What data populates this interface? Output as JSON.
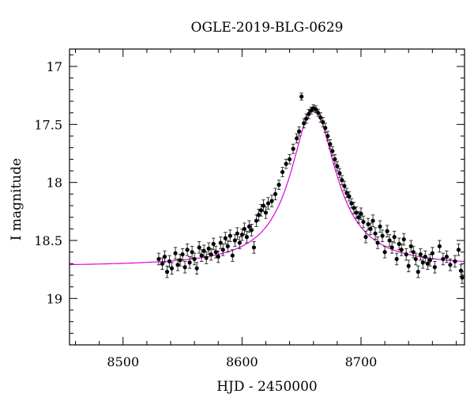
{
  "chart_data": {
    "type": "scatter",
    "title": "OGLE-2019-BLG-0629",
    "xlabel": "HJD - 2450000",
    "ylabel": "I magnitude",
    "xlim": [
      8455,
      8787
    ],
    "ylim": [
      19.4,
      16.85
    ],
    "y_inverted": true,
    "grid": false,
    "x_ticks": [
      8500,
      8600,
      8700
    ],
    "x_tick_labels": [
      "8500",
      "8600",
      "8700"
    ],
    "y_ticks": [
      17,
      17.5,
      18,
      18.5,
      19
    ],
    "y_tick_labels": [
      "17",
      "17.5",
      "18",
      "18.5",
      "19"
    ],
    "colors": {
      "points": "#000000",
      "model": "#e000e0"
    },
    "series": [
      {
        "kind": "points",
        "points": [
          [
            8530,
            18.66,
            0.05
          ],
          [
            8533,
            18.7,
            0.05
          ],
          [
            8535,
            18.64,
            0.05
          ],
          [
            8537,
            18.77,
            0.05
          ],
          [
            8539,
            18.68,
            0.05
          ],
          [
            8541,
            18.74,
            0.05
          ],
          [
            8544,
            18.61,
            0.05
          ],
          [
            8546,
            18.71,
            0.05
          ],
          [
            8548,
            18.67,
            0.05
          ],
          [
            8550,
            18.62,
            0.05
          ],
          [
            8552,
            18.73,
            0.05
          ],
          [
            8554,
            18.58,
            0.05
          ],
          [
            8556,
            18.69,
            0.05
          ],
          [
            8558,
            18.6,
            0.05
          ],
          [
            8560,
            18.66,
            0.05
          ],
          [
            8562,
            18.74,
            0.05
          ],
          [
            8564,
            18.56,
            0.05
          ],
          [
            8566,
            18.63,
            0.05
          ],
          [
            8568,
            18.59,
            0.05
          ],
          [
            8570,
            18.65,
            0.05
          ],
          [
            8572,
            18.57,
            0.05
          ],
          [
            8574,
            18.62,
            0.05
          ],
          [
            8576,
            18.53,
            0.05
          ],
          [
            8578,
            18.6,
            0.05
          ],
          [
            8580,
            18.64,
            0.05
          ],
          [
            8582,
            18.52,
            0.05
          ],
          [
            8584,
            18.58,
            0.05
          ],
          [
            8586,
            18.48,
            0.05
          ],
          [
            8588,
            18.55,
            0.05
          ],
          [
            8590,
            18.46,
            0.05
          ],
          [
            8592,
            18.63,
            0.05
          ],
          [
            8594,
            18.5,
            0.05
          ],
          [
            8596,
            18.44,
            0.05
          ],
          [
            8598,
            18.52,
            0.05
          ],
          [
            8600,
            18.45,
            0.05
          ],
          [
            8602,
            18.4,
            0.05
          ],
          [
            8604,
            18.47,
            0.05
          ],
          [
            8606,
            18.38,
            0.05
          ],
          [
            8608,
            18.41,
            0.05
          ],
          [
            8610,
            18.56,
            0.05
          ],
          [
            8612,
            18.33,
            0.05
          ],
          [
            8614,
            18.28,
            0.05
          ],
          [
            8616,
            18.24,
            0.05
          ],
          [
            8618,
            18.2,
            0.05
          ],
          [
            8620,
            18.26,
            0.05
          ],
          [
            8622,
            18.18,
            0.05
          ],
          [
            8625,
            18.16,
            0.05
          ],
          [
            8628,
            18.1,
            0.05
          ],
          [
            8631,
            18.02,
            0.04
          ],
          [
            8634,
            17.91,
            0.04
          ],
          [
            8637,
            17.84,
            0.04
          ],
          [
            8640,
            17.8,
            0.04
          ],
          [
            8643,
            17.71,
            0.04
          ],
          [
            8646,
            17.62,
            0.04
          ],
          [
            8648,
            17.56,
            0.04
          ],
          [
            8650,
            17.26,
            0.03
          ],
          [
            8652,
            17.49,
            0.04
          ],
          [
            8654,
            17.45,
            0.04
          ],
          [
            8656,
            17.41,
            0.04
          ],
          [
            8658,
            17.38,
            0.03
          ],
          [
            8660,
            17.36,
            0.03
          ],
          [
            8662,
            17.37,
            0.03
          ],
          [
            8664,
            17.4,
            0.03
          ],
          [
            8666,
            17.44,
            0.04
          ],
          [
            8668,
            17.48,
            0.04
          ],
          [
            8670,
            17.53,
            0.04
          ],
          [
            8672,
            17.6,
            0.04
          ],
          [
            8674,
            17.67,
            0.04
          ],
          [
            8676,
            17.73,
            0.04
          ],
          [
            8678,
            17.8,
            0.04
          ],
          [
            8680,
            17.86,
            0.04
          ],
          [
            8682,
            17.92,
            0.04
          ],
          [
            8684,
            17.98,
            0.04
          ],
          [
            8686,
            18.03,
            0.04
          ],
          [
            8688,
            18.09,
            0.04
          ],
          [
            8690,
            18.12,
            0.04
          ],
          [
            8692,
            18.18,
            0.04
          ],
          [
            8694,
            18.22,
            0.05
          ],
          [
            8696,
            18.26,
            0.05
          ],
          [
            8698,
            18.3,
            0.05
          ],
          [
            8700,
            18.27,
            0.05
          ],
          [
            8702,
            18.34,
            0.05
          ],
          [
            8704,
            18.47,
            0.05
          ],
          [
            8706,
            18.36,
            0.05
          ],
          [
            8708,
            18.4,
            0.05
          ],
          [
            8710,
            18.33,
            0.05
          ],
          [
            8712,
            18.44,
            0.05
          ],
          [
            8714,
            18.52,
            0.05
          ],
          [
            8716,
            18.38,
            0.05
          ],
          [
            8718,
            18.46,
            0.05
          ],
          [
            8720,
            18.6,
            0.05
          ],
          [
            8722,
            18.42,
            0.05
          ],
          [
            8724,
            18.5,
            0.05
          ],
          [
            8726,
            18.56,
            0.05
          ],
          [
            8728,
            18.47,
            0.05
          ],
          [
            8730,
            18.66,
            0.05
          ],
          [
            8732,
            18.53,
            0.05
          ],
          [
            8734,
            18.58,
            0.05
          ],
          [
            8736,
            18.49,
            0.05
          ],
          [
            8738,
            18.62,
            0.05
          ],
          [
            8740,
            18.72,
            0.05
          ],
          [
            8742,
            18.55,
            0.05
          ],
          [
            8744,
            18.6,
            0.05
          ],
          [
            8746,
            18.66,
            0.05
          ],
          [
            8748,
            18.77,
            0.05
          ],
          [
            8750,
            18.62,
            0.05
          ],
          [
            8752,
            18.69,
            0.05
          ],
          [
            8754,
            18.64,
            0.05
          ],
          [
            8756,
            18.7,
            0.05
          ],
          [
            8758,
            18.67,
            0.05
          ],
          [
            8760,
            18.61,
            0.05
          ],
          [
            8762,
            18.73,
            0.05
          ],
          [
            8766,
            18.55,
            0.05
          ],
          [
            8769,
            18.66,
            0.05
          ],
          [
            8772,
            18.64,
            0.05
          ],
          [
            8775,
            18.71,
            0.05
          ],
          [
            8779,
            18.68,
            0.05
          ],
          [
            8782,
            18.58,
            0.05
          ],
          [
            8784,
            18.76,
            0.05
          ],
          [
            8785,
            18.82,
            0.05
          ]
        ]
      },
      {
        "kind": "model",
        "baseline": 18.725,
        "peak": 17.355,
        "t0": 8660,
        "tau": 23
      }
    ]
  }
}
